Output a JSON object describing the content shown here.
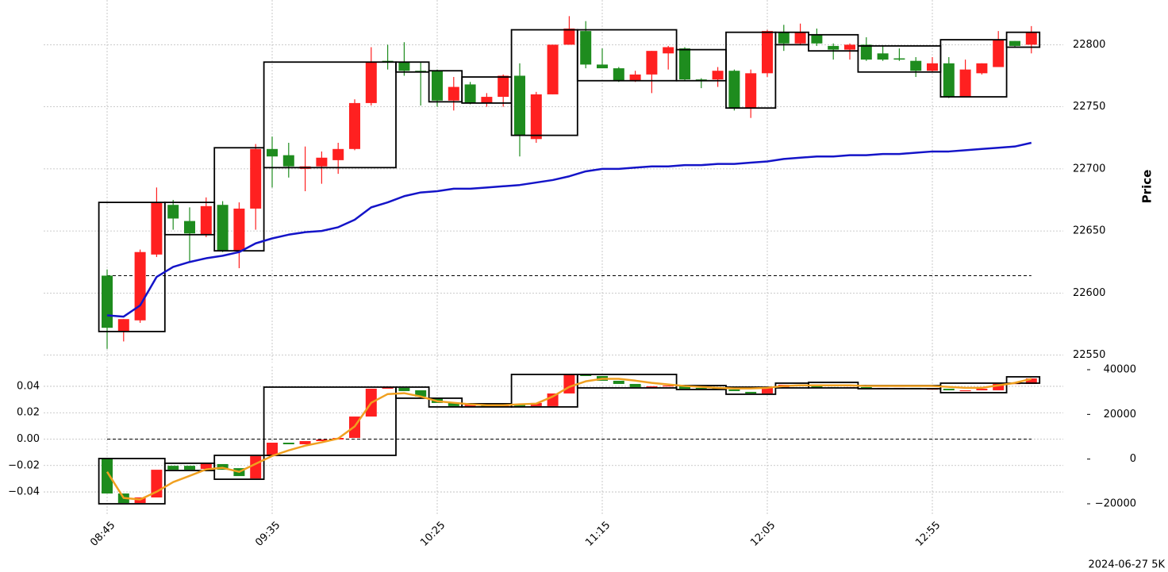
{
  "footer": "2024-06-27 5K",
  "chart_data": [
    {
      "type": "candlestick",
      "ylabel": "Price",
      "yaxis": "right",
      "ylim": [
        22544,
        22836
      ],
      "yticks": [
        22550,
        22600,
        22650,
        22700,
        22750,
        22800
      ],
      "grid": true,
      "up_color": "#ff2020",
      "down_color": "#1e8c1e",
      "box_color": "#000000",
      "open": [
        22614,
        22569,
        22578,
        22631,
        22671,
        22658,
        22647,
        22671,
        22634,
        22668,
        22716,
        22711,
        22700,
        22702,
        22707,
        22716,
        22753,
        22787,
        22786,
        22779,
        22779,
        22755,
        22768,
        22753,
        22758,
        22775,
        22724,
        22760,
        22800,
        22811,
        22784,
        22781,
        22771,
        22776,
        22793,
        22797,
        22772,
        22772,
        22779,
        22749,
        22777,
        22810,
        22801,
        22808,
        22799,
        22796,
        22800,
        22793,
        22789,
        22787,
        22779,
        22785,
        22758,
        22777,
        22782,
        22803,
        22800
      ],
      "high": [
        22619,
        22579,
        22635,
        22685,
        22675,
        22669,
        22677,
        22674,
        22673,
        22720,
        22726,
        22721,
        22718,
        22714,
        22721,
        22756,
        22798,
        22800,
        22802,
        22786,
        22780,
        22774,
        22770,
        22761,
        22776,
        22785,
        22762,
        22800,
        22823,
        22819,
        22797,
        22782,
        22779,
        22795,
        22799,
        22798,
        22773,
        22782,
        22780,
        22780,
        22812,
        22816,
        22817,
        22813,
        22801,
        22801,
        22806,
        22799,
        22797,
        22790,
        22790,
        22790,
        22788,
        22785,
        22811,
        22803,
        22815
      ],
      "low": [
        22555,
        22561,
        22576,
        22629,
        22651,
        22625,
        22645,
        22633,
        22620,
        22651,
        22685,
        22693,
        22682,
        22688,
        22696,
        22715,
        22751,
        22780,
        22775,
        22751,
        22750,
        22747,
        22752,
        22750,
        22750,
        22710,
        22721,
        22760,
        22800,
        22781,
        22781,
        22770,
        22770,
        22761,
        22780,
        22771,
        22765,
        22766,
        22747,
        22741,
        22774,
        22795,
        22800,
        22799,
        22788,
        22788,
        22787,
        22787,
        22787,
        22774,
        22778,
        22757,
        22758,
        22776,
        22782,
        22798,
        22793
      ],
      "close": [
        22572,
        22579,
        22633,
        22673,
        22660,
        22648,
        22670,
        22634,
        22668,
        22716,
        22710,
        22702,
        22702,
        22709,
        22716,
        22753,
        22786,
        22786,
        22779,
        22778,
        22755,
        22766,
        22753,
        22758,
        22775,
        22727,
        22760,
        22800,
        22813,
        22784,
        22781,
        22771,
        22776,
        22795,
        22798,
        22772,
        22771,
        22779,
        22749,
        22777,
        22811,
        22801,
        22810,
        22801,
        22796,
        22800,
        22788,
        22788,
        22788,
        22779,
        22785,
        22758,
        22780,
        22785,
        22804,
        22799,
        22810
      ],
      "boxes": [
        {
          "start": 0,
          "end": 3,
          "top": 22673,
          "bottom": 22569
        },
        {
          "start": 4,
          "end": 6,
          "top": 22673,
          "bottom": 22647
        },
        {
          "start": 7,
          "end": 9,
          "top": 22717,
          "bottom": 22634
        },
        {
          "start": 10,
          "end": 17,
          "top": 22786,
          "bottom": 22701
        },
        {
          "start": 18,
          "end": 19,
          "top": 22786,
          "bottom": 22778
        },
        {
          "start": 20,
          "end": 21,
          "top": 22779,
          "bottom": 22754
        },
        {
          "start": 22,
          "end": 24,
          "top": 22774,
          "bottom": 22753
        },
        {
          "start": 25,
          "end": 28,
          "top": 22812,
          "bottom": 22727
        },
        {
          "start": 29,
          "end": 34,
          "top": 22812,
          "bottom": 22771
        },
        {
          "start": 35,
          "end": 37,
          "top": 22796,
          "bottom": 22771
        },
        {
          "start": 38,
          "end": 40,
          "top": 22810,
          "bottom": 22749
        },
        {
          "start": 41,
          "end": 42,
          "top": 22810,
          "bottom": 22800
        },
        {
          "start": 43,
          "end": 45,
          "top": 22808,
          "bottom": 22795
        },
        {
          "start": 46,
          "end": 50,
          "top": 22799,
          "bottom": 22778
        },
        {
          "start": 51,
          "end": 54,
          "top": 22804,
          "bottom": 22758
        },
        {
          "start": 55,
          "end": 56,
          "top": 22810,
          "bottom": 22798
        }
      ],
      "series": [
        {
          "color": "#1414c8",
          "values": [
            22582,
            22581,
            22590,
            22613,
            22621,
            22625,
            22628,
            22630,
            22633,
            22640,
            22644,
            22647,
            22649,
            22650,
            22653,
            22659,
            22669,
            22673,
            22678,
            22681,
            22682,
            22684,
            22684,
            22685,
            22686,
            22687,
            22689,
            22691,
            22694,
            22698,
            22700,
            22700,
            22701,
            22702,
            22702,
            22703,
            22703,
            22704,
            22704,
            22705,
            22706,
            22708,
            22709,
            22710,
            22710,
            22711,
            22711,
            22712,
            22712,
            22713,
            22714,
            22714,
            22715,
            22716,
            22717,
            22718,
            22721
          ]
        }
      ],
      "reference_line": {
        "value": 22614,
        "color": "#000000"
      }
    },
    {
      "type": "candlestick",
      "categories": [
        "08:45",
        null,
        null,
        null,
        null,
        null,
        null,
        null,
        null,
        null,
        "09:35",
        null,
        null,
        null,
        null,
        null,
        null,
        null,
        null,
        null,
        "10:25",
        null,
        null,
        null,
        null,
        null,
        null,
        null,
        null,
        null,
        "11:15",
        null,
        null,
        null,
        null,
        null,
        null,
        null,
        null,
        null,
        "12:05",
        null,
        null,
        null,
        null,
        null,
        null,
        null,
        null,
        null,
        "12:55",
        null,
        null,
        null,
        null,
        null,
        null
      ],
      "ylim": [
        -0.0568,
        0.055
      ],
      "yticks": [
        {
          "value": -0.04,
          "label": "−0.04"
        },
        {
          "value": -0.02,
          "label": "−0.02"
        },
        {
          "value": 0,
          "label": "0.00"
        },
        0.02,
        0.04
      ],
      "y2lim": [
        -24615,
        41420
      ],
      "y2ticks": [
        {
          "value": -20000,
          "label": "−20000"
        },
        0,
        20000,
        40000
      ],
      "grid": true,
      "up_color": "#ff2020",
      "down_color": "#1e8c1e",
      "box_color": "#000000",
      "open": [
        -0.0147,
        -0.0412,
        -0.0484,
        -0.0442,
        -0.0202,
        -0.0202,
        -0.0226,
        -0.0189,
        -0.022,
        -0.0298,
        -0.0129,
        -0.0027,
        -0.0039,
        -0.0015,
        -0.0003,
        0.0009,
        0.0171,
        0.0382,
        0.0388,
        0.037,
        0.031,
        0.0274,
        0.025,
        0.0256,
        0.025,
        0.0262,
        0.025,
        0.025,
        0.0346,
        0.049,
        0.0478,
        0.0442,
        0.0418,
        0.0394,
        0.04,
        0.0406,
        0.0388,
        0.0388,
        0.0376,
        0.0358,
        0.0346,
        0.0394,
        0.0412,
        0.04,
        0.0394,
        0.0388,
        0.0394,
        0.0388,
        0.0388,
        0.0388,
        0.0382,
        0.0382,
        0.037,
        0.037,
        0.037,
        0.0418,
        0.0418
      ],
      "close": [
        -0.0412,
        -0.0484,
        -0.0442,
        -0.0232,
        -0.0232,
        -0.0232,
        -0.0183,
        -0.0232,
        -0.028,
        -0.0129,
        -0.0027,
        -0.0039,
        -0.0015,
        -0.0003,
        0.0009,
        0.0171,
        0.0382,
        0.0394,
        0.0364,
        0.0322,
        0.0274,
        0.025,
        0.0262,
        0.025,
        0.0262,
        0.025,
        0.0274,
        0.0346,
        0.049,
        0.0478,
        0.0442,
        0.0418,
        0.0394,
        0.04,
        0.0406,
        0.0382,
        0.0382,
        0.0376,
        0.0364,
        0.0346,
        0.0394,
        0.0412,
        0.04,
        0.0394,
        0.0388,
        0.0394,
        0.0388,
        0.0388,
        0.0388,
        0.0382,
        0.0382,
        0.037,
        0.037,
        0.0382,
        0.0418,
        0.0424,
        0.046
      ],
      "boxes": [
        {
          "start": 0,
          "end": 3,
          "top": -0.0147,
          "bottom": -0.049
        },
        {
          "start": 4,
          "end": 6,
          "top": -0.0183,
          "bottom": -0.0238
        },
        {
          "start": 7,
          "end": 9,
          "top": -0.0123,
          "bottom": -0.0304
        },
        {
          "start": 10,
          "end": 17,
          "top": 0.0394,
          "bottom": -0.0123
        },
        {
          "start": 18,
          "end": 19,
          "top": 0.0394,
          "bottom": 0.031
        },
        {
          "start": 20,
          "end": 21,
          "top": 0.031,
          "bottom": 0.0244
        },
        {
          "start": 22,
          "end": 24,
          "top": 0.0268,
          "bottom": 0.0244
        },
        {
          "start": 25,
          "end": 28,
          "top": 0.049,
          "bottom": 0.0244
        },
        {
          "start": 29,
          "end": 34,
          "top": 0.049,
          "bottom": 0.0388
        },
        {
          "start": 35,
          "end": 37,
          "top": 0.0406,
          "bottom": 0.0376
        },
        {
          "start": 38,
          "end": 40,
          "top": 0.0394,
          "bottom": 0.034
        },
        {
          "start": 41,
          "end": 42,
          "top": 0.0424,
          "bottom": 0.0388
        },
        {
          "start": 43,
          "end": 45,
          "top": 0.043,
          "bottom": 0.0388
        },
        {
          "start": 46,
          "end": 50,
          "top": 0.0406,
          "bottom": 0.0382
        },
        {
          "start": 51,
          "end": 54,
          "top": 0.0424,
          "bottom": 0.0352
        },
        {
          "start": 55,
          "end": 56,
          "top": 0.0472,
          "bottom": 0.0424
        }
      ],
      "series": [
        {
          "color": "#f0a020",
          "axis": "y2",
          "values": [
            -5700,
            -17400,
            -18100,
            -14600,
            -10300,
            -7500,
            -4600,
            -3900,
            -5700,
            -2100,
            1400,
            3900,
            6000,
            7500,
            9200,
            14600,
            25200,
            29100,
            29500,
            28000,
            25900,
            25200,
            24500,
            24100,
            24100,
            24500,
            24800,
            28000,
            32300,
            34800,
            35900,
            35900,
            35100,
            34100,
            33400,
            32700,
            32300,
            31900,
            31600,
            31600,
            31900,
            32700,
            33000,
            33000,
            33000,
            33000,
            32700,
            32700,
            32700,
            32700,
            32700,
            32300,
            31900,
            31900,
            33000,
            34100,
            35900
          ]
        }
      ],
      "reference_line": {
        "value": 0,
        "color": "#000000"
      }
    }
  ]
}
